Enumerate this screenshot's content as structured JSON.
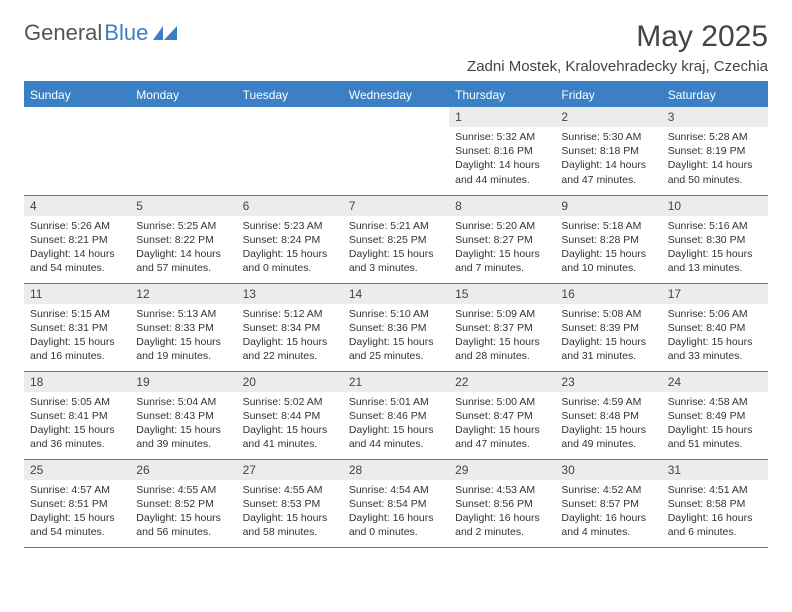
{
  "brand": {
    "name1": "General",
    "name2": "Blue"
  },
  "title": "May 2025",
  "location": "Zadni Mostek, Kralovehradecky kraj, Czechia",
  "colors": {
    "accent": "#3b7fc4",
    "header_text": "#ffffff",
    "daynum_bg": "#ececec",
    "text": "#333333",
    "background": "#ffffff"
  },
  "calendar": {
    "day_headers": [
      "Sunday",
      "Monday",
      "Tuesday",
      "Wednesday",
      "Thursday",
      "Friday",
      "Saturday"
    ],
    "weeks": [
      [
        {
          "n": "",
          "sunrise": "",
          "sunset": "",
          "daylight": "",
          "empty": true
        },
        {
          "n": "",
          "sunrise": "",
          "sunset": "",
          "daylight": "",
          "empty": true
        },
        {
          "n": "",
          "sunrise": "",
          "sunset": "",
          "daylight": "",
          "empty": true
        },
        {
          "n": "",
          "sunrise": "",
          "sunset": "",
          "daylight": "",
          "empty": true
        },
        {
          "n": "1",
          "sunrise": "5:32 AM",
          "sunset": "8:16 PM",
          "daylight": "14 hours and 44 minutes."
        },
        {
          "n": "2",
          "sunrise": "5:30 AM",
          "sunset": "8:18 PM",
          "daylight": "14 hours and 47 minutes."
        },
        {
          "n": "3",
          "sunrise": "5:28 AM",
          "sunset": "8:19 PM",
          "daylight": "14 hours and 50 minutes."
        }
      ],
      [
        {
          "n": "4",
          "sunrise": "5:26 AM",
          "sunset": "8:21 PM",
          "daylight": "14 hours and 54 minutes."
        },
        {
          "n": "5",
          "sunrise": "5:25 AM",
          "sunset": "8:22 PM",
          "daylight": "14 hours and 57 minutes."
        },
        {
          "n": "6",
          "sunrise": "5:23 AM",
          "sunset": "8:24 PM",
          "daylight": "15 hours and 0 minutes."
        },
        {
          "n": "7",
          "sunrise": "5:21 AM",
          "sunset": "8:25 PM",
          "daylight": "15 hours and 3 minutes."
        },
        {
          "n": "8",
          "sunrise": "5:20 AM",
          "sunset": "8:27 PM",
          "daylight": "15 hours and 7 minutes."
        },
        {
          "n": "9",
          "sunrise": "5:18 AM",
          "sunset": "8:28 PM",
          "daylight": "15 hours and 10 minutes."
        },
        {
          "n": "10",
          "sunrise": "5:16 AM",
          "sunset": "8:30 PM",
          "daylight": "15 hours and 13 minutes."
        }
      ],
      [
        {
          "n": "11",
          "sunrise": "5:15 AM",
          "sunset": "8:31 PM",
          "daylight": "15 hours and 16 minutes."
        },
        {
          "n": "12",
          "sunrise": "5:13 AM",
          "sunset": "8:33 PM",
          "daylight": "15 hours and 19 minutes."
        },
        {
          "n": "13",
          "sunrise": "5:12 AM",
          "sunset": "8:34 PM",
          "daylight": "15 hours and 22 minutes."
        },
        {
          "n": "14",
          "sunrise": "5:10 AM",
          "sunset": "8:36 PM",
          "daylight": "15 hours and 25 minutes."
        },
        {
          "n": "15",
          "sunrise": "5:09 AM",
          "sunset": "8:37 PM",
          "daylight": "15 hours and 28 minutes."
        },
        {
          "n": "16",
          "sunrise": "5:08 AM",
          "sunset": "8:39 PM",
          "daylight": "15 hours and 31 minutes."
        },
        {
          "n": "17",
          "sunrise": "5:06 AM",
          "sunset": "8:40 PM",
          "daylight": "15 hours and 33 minutes."
        }
      ],
      [
        {
          "n": "18",
          "sunrise": "5:05 AM",
          "sunset": "8:41 PM",
          "daylight": "15 hours and 36 minutes."
        },
        {
          "n": "19",
          "sunrise": "5:04 AM",
          "sunset": "8:43 PM",
          "daylight": "15 hours and 39 minutes."
        },
        {
          "n": "20",
          "sunrise": "5:02 AM",
          "sunset": "8:44 PM",
          "daylight": "15 hours and 41 minutes."
        },
        {
          "n": "21",
          "sunrise": "5:01 AM",
          "sunset": "8:46 PM",
          "daylight": "15 hours and 44 minutes."
        },
        {
          "n": "22",
          "sunrise": "5:00 AM",
          "sunset": "8:47 PM",
          "daylight": "15 hours and 47 minutes."
        },
        {
          "n": "23",
          "sunrise": "4:59 AM",
          "sunset": "8:48 PM",
          "daylight": "15 hours and 49 minutes."
        },
        {
          "n": "24",
          "sunrise": "4:58 AM",
          "sunset": "8:49 PM",
          "daylight": "15 hours and 51 minutes."
        }
      ],
      [
        {
          "n": "25",
          "sunrise": "4:57 AM",
          "sunset": "8:51 PM",
          "daylight": "15 hours and 54 minutes."
        },
        {
          "n": "26",
          "sunrise": "4:55 AM",
          "sunset": "8:52 PM",
          "daylight": "15 hours and 56 minutes."
        },
        {
          "n": "27",
          "sunrise": "4:55 AM",
          "sunset": "8:53 PM",
          "daylight": "15 hours and 58 minutes."
        },
        {
          "n": "28",
          "sunrise": "4:54 AM",
          "sunset": "8:54 PM",
          "daylight": "16 hours and 0 minutes."
        },
        {
          "n": "29",
          "sunrise": "4:53 AM",
          "sunset": "8:56 PM",
          "daylight": "16 hours and 2 minutes."
        },
        {
          "n": "30",
          "sunrise": "4:52 AM",
          "sunset": "8:57 PM",
          "daylight": "16 hours and 4 minutes."
        },
        {
          "n": "31",
          "sunrise": "4:51 AM",
          "sunset": "8:58 PM",
          "daylight": "16 hours and 6 minutes."
        }
      ]
    ]
  },
  "labels": {
    "sunrise": "Sunrise:",
    "sunset": "Sunset:",
    "daylight": "Daylight:"
  }
}
